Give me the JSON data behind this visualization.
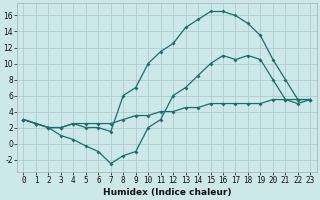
{
  "title": "",
  "xlabel": "Humidex (Indice chaleur)",
  "bg_color": "#cce8e8",
  "grid_color": "#b0cccc",
  "line_color": "#1a6e6e",
  "xlim": [
    -0.5,
    23.5
  ],
  "ylim": [
    -3.5,
    17.5
  ],
  "xticks": [
    0,
    1,
    2,
    3,
    4,
    5,
    6,
    7,
    8,
    9,
    10,
    11,
    12,
    13,
    14,
    15,
    16,
    17,
    18,
    19,
    20,
    21,
    22,
    23
  ],
  "yticks": [
    -2,
    0,
    2,
    4,
    6,
    8,
    10,
    12,
    14,
    16
  ],
  "line1_x": [
    0,
    1,
    2,
    3,
    4,
    5,
    6,
    7,
    8,
    9,
    10,
    11,
    12,
    13,
    14,
    15,
    16,
    17,
    18,
    19,
    20,
    21,
    22,
    23
  ],
  "line1_y": [
    3.0,
    2.5,
    2.0,
    1.0,
    0.5,
    -0.3,
    -1.0,
    -2.5,
    -1.5,
    -1.0,
    2.0,
    3.0,
    6.0,
    7.0,
    8.5,
    10.0,
    11.0,
    10.5,
    11.0,
    10.5,
    8.0,
    5.5,
    5.0,
    5.5
  ],
  "line2_x": [
    0,
    1,
    2,
    3,
    4,
    5,
    6,
    7,
    8,
    9,
    10,
    11,
    12,
    13,
    14,
    15,
    16,
    17,
    18,
    19,
    20,
    21,
    22,
    23
  ],
  "line2_y": [
    3.0,
    2.5,
    2.0,
    2.0,
    2.5,
    2.0,
    2.0,
    1.5,
    6.0,
    7.0,
    10.0,
    11.5,
    12.5,
    14.5,
    15.5,
    16.5,
    16.5,
    16.0,
    15.0,
    13.5,
    10.5,
    8.0,
    5.5,
    5.5
  ],
  "line3_x": [
    0,
    1,
    2,
    3,
    4,
    5,
    6,
    7,
    8,
    9,
    10,
    11,
    12,
    13,
    14,
    15,
    16,
    17,
    18,
    19,
    20,
    21,
    22,
    23
  ],
  "line3_y": [
    3.0,
    2.5,
    2.0,
    2.0,
    2.5,
    2.5,
    2.5,
    2.5,
    3.0,
    3.5,
    3.5,
    4.0,
    4.0,
    4.5,
    4.5,
    5.0,
    5.0,
    5.0,
    5.0,
    5.0,
    5.5,
    5.5,
    5.5,
    5.5
  ],
  "tick_fontsize": 5.5,
  "xlabel_fontsize": 6.5,
  "marker_size": 2.0,
  "linewidth": 0.9
}
